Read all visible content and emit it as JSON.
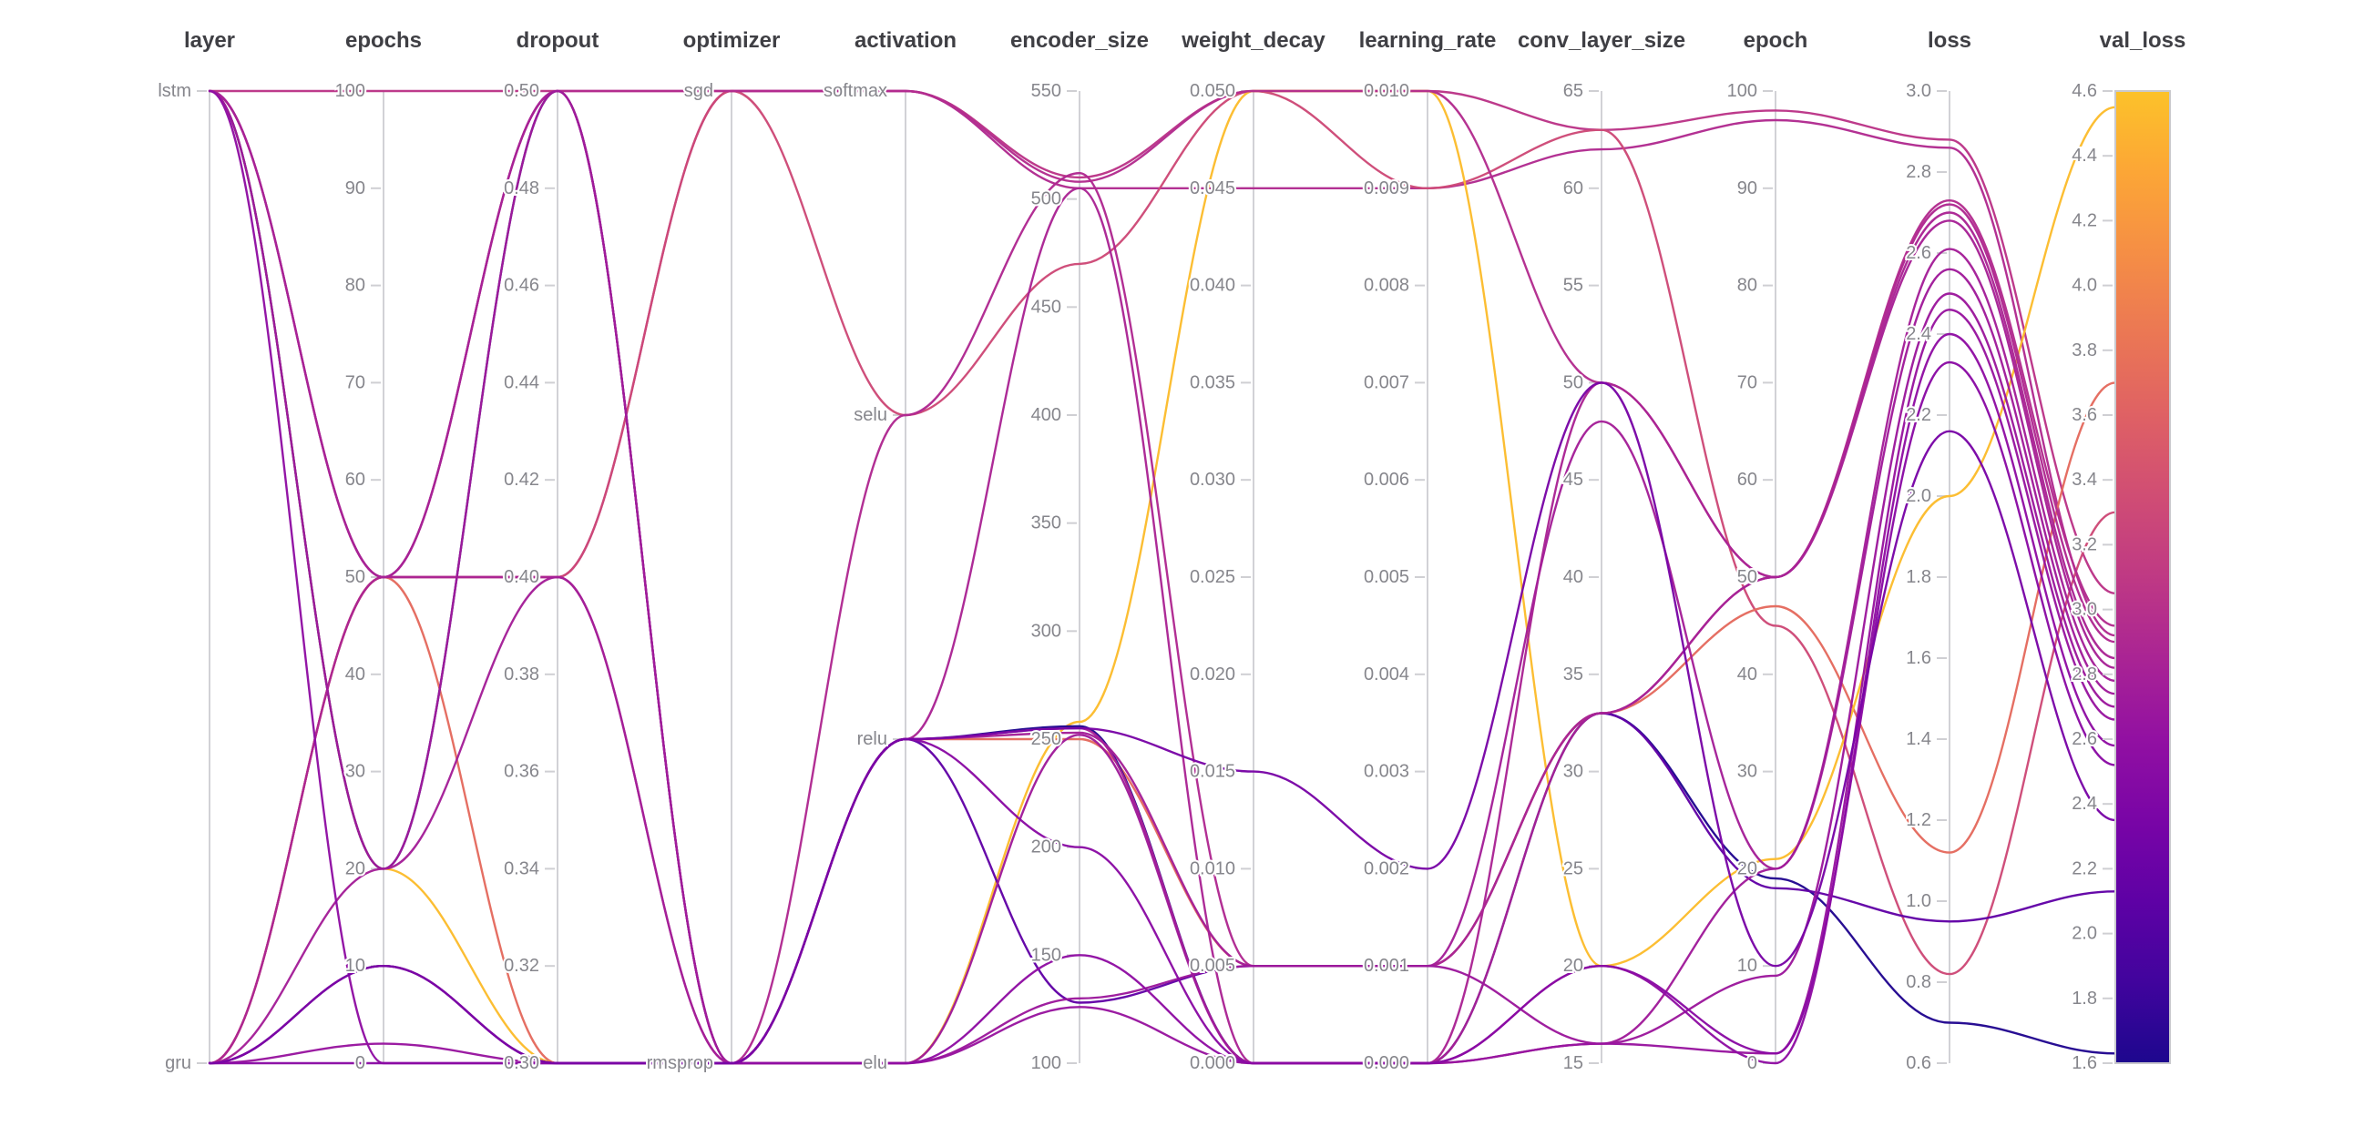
{
  "chart_data": {
    "type": "parallel_coordinates",
    "title": "",
    "legend": "none",
    "grid": "off",
    "color_by": "val_loss",
    "colormap": "plasma",
    "plasma_stops": [
      "#0d0887",
      "#41049d",
      "#6a00a8",
      "#8f0da4",
      "#b12a90",
      "#cc4778",
      "#e16462",
      "#f2844b",
      "#fca636",
      "#fcce25",
      "#f0f921"
    ],
    "color_domain_fraction": [
      0.03,
      0.87
    ],
    "axes": [
      {
        "id": "layer",
        "label": "layer",
        "type": "category",
        "categories_top_to_bottom": [
          "lstm",
          "gru"
        ]
      },
      {
        "id": "epochs",
        "label": "epochs",
        "type": "number",
        "min": 0,
        "max": 100,
        "tick_step": 10,
        "tick_labels": [
          "0",
          "10",
          "20",
          "30",
          "40",
          "50",
          "60",
          "70",
          "80",
          "90",
          "100"
        ]
      },
      {
        "id": "dropout",
        "label": "dropout",
        "type": "number",
        "min": 0.3,
        "max": 0.5,
        "tick_step": 0.02,
        "tick_labels": [
          "0.30",
          "0.32",
          "0.34",
          "0.36",
          "0.38",
          "0.40",
          "0.42",
          "0.44",
          "0.46",
          "0.48",
          "0.50"
        ]
      },
      {
        "id": "optimizer",
        "label": "optimizer",
        "type": "category",
        "categories_top_to_bottom": [
          "sgd",
          "rmsprop"
        ]
      },
      {
        "id": "activation",
        "label": "activation",
        "type": "category",
        "categories_top_to_bottom": [
          "softmax",
          "selu",
          "relu",
          "elu"
        ]
      },
      {
        "id": "encoder_size",
        "label": "encoder_size",
        "type": "number",
        "min": 100,
        "max": 550,
        "tick_step": 50,
        "tick_labels": [
          "100",
          "150",
          "200",
          "250",
          "300",
          "350",
          "400",
          "450",
          "500",
          "550"
        ]
      },
      {
        "id": "weight_decay",
        "label": "weight_decay",
        "type": "number",
        "min": 0.0,
        "max": 0.05,
        "tick_step": 0.005,
        "tick_labels": [
          "0.000",
          "0.005",
          "0.010",
          "0.015",
          "0.020",
          "0.025",
          "0.030",
          "0.035",
          "0.040",
          "0.045",
          "0.050"
        ]
      },
      {
        "id": "learning_rate",
        "label": "learning_rate",
        "type": "number",
        "min": 0.0,
        "max": 0.01,
        "tick_step": 0.001,
        "tick_labels": [
          "0.000",
          "0.001",
          "0.002",
          "0.003",
          "0.004",
          "0.005",
          "0.006",
          "0.007",
          "0.008",
          "0.009",
          "0.010"
        ]
      },
      {
        "id": "conv_layer_size",
        "label": "conv_layer_size",
        "type": "number",
        "min": 15,
        "max": 65,
        "tick_step": 5,
        "tick_labels": [
          "15",
          "20",
          "25",
          "30",
          "35",
          "40",
          "45",
          "50",
          "55",
          "60",
          "65"
        ]
      },
      {
        "id": "epoch",
        "label": "epoch",
        "type": "number",
        "min": 0,
        "max": 100,
        "tick_step": 10,
        "tick_labels": [
          "0",
          "10",
          "20",
          "30",
          "40",
          "50",
          "60",
          "70",
          "80",
          "90",
          "100"
        ]
      },
      {
        "id": "loss",
        "label": "loss",
        "type": "number",
        "min": 0.6,
        "max": 3.0,
        "tick_step": 0.2,
        "tick_labels": [
          "0.6",
          "0.8",
          "1.0",
          "1.2",
          "1.4",
          "1.6",
          "1.8",
          "2.0",
          "2.2",
          "2.4",
          "2.6",
          "2.8",
          "3.0"
        ]
      }
    ],
    "colorbar": {
      "id": "val_loss",
      "label": "val_loss",
      "min": 1.6,
      "max": 4.6,
      "tick_step": 0.2,
      "tick_labels": [
        "1.6",
        "1.8",
        "2.0",
        "2.2",
        "2.4",
        "2.6",
        "2.8",
        "3.0",
        "3.2",
        "3.4",
        "3.6",
        "3.8",
        "4.0",
        "4.2",
        "4.4",
        "4.6"
      ]
    },
    "runs": [
      {
        "layer": "lstm",
        "epochs": 100,
        "dropout": 0.5,
        "optimizer": "sgd",
        "activation": "softmax",
        "encoder_size": 510,
        "weight_decay": 0.05,
        "learning_rate": 0.01,
        "conv_layer_size": 63,
        "epoch": 98,
        "loss": 2.88,
        "val_loss": 3.05
      },
      {
        "layer": "gru",
        "epochs": 50,
        "dropout": 0.4,
        "optimizer": "sgd",
        "activation": "softmax",
        "encoder_size": 505,
        "weight_decay": 0.045,
        "learning_rate": 0.009,
        "conv_layer_size": 62,
        "epoch": 97,
        "loss": 2.86,
        "val_loss": 2.92
      },
      {
        "layer": "gru",
        "epochs": 50,
        "dropout": 0.4,
        "optimizer": "sgd",
        "activation": "selu",
        "encoder_size": 470,
        "weight_decay": 0.05,
        "learning_rate": 0.009,
        "conv_layer_size": 63,
        "epoch": 45,
        "loss": 0.82,
        "val_loss": 3.3
      },
      {
        "layer": "gru",
        "epochs": 50,
        "dropout": 0.3,
        "optimizer": "rmsprop",
        "activation": "relu",
        "encoder_size": 250,
        "weight_decay": 0.005,
        "learning_rate": 0.001,
        "conv_layer_size": 33,
        "epoch": 47,
        "loss": 1.12,
        "val_loss": 3.7
      },
      {
        "layer": "lstm",
        "epochs": 20,
        "dropout": 0.3,
        "optimizer": "rmsprop",
        "activation": "elu",
        "encoder_size": 258,
        "weight_decay": 0.05,
        "learning_rate": 0.01,
        "conv_layer_size": 20,
        "epoch": 21,
        "loss": 2.0,
        "val_loss": 4.55
      },
      {
        "layer": "lstm",
        "epochs": 20,
        "dropout": 0.5,
        "optimizer": "rmsprop",
        "activation": "relu",
        "encoder_size": 256,
        "weight_decay": 0.0,
        "learning_rate": 0.0,
        "conv_layer_size": 33,
        "epoch": 19,
        "loss": 0.7,
        "val_loss": 1.63
      },
      {
        "layer": "gru",
        "epochs": 10,
        "dropout": 0.3,
        "optimizer": "rmsprop",
        "activation": "relu",
        "encoder_size": 128,
        "weight_decay": 0.005,
        "learning_rate": 0.001,
        "conv_layer_size": 33,
        "epoch": 18,
        "loss": 0.95,
        "val_loss": 2.13
      },
      {
        "layer": "lstm",
        "epochs": 50,
        "dropout": 0.5,
        "optimizer": "sgd",
        "activation": "softmax",
        "encoder_size": 508,
        "weight_decay": 0.05,
        "learning_rate": 0.01,
        "conv_layer_size": 50,
        "epoch": 50,
        "loss": 2.73,
        "val_loss": 2.95
      },
      {
        "layer": "lstm",
        "epochs": 50,
        "dropout": 0.5,
        "optimizer": "rmsprop",
        "activation": "selu",
        "encoder_size": 512,
        "weight_decay": 0.005,
        "learning_rate": 0.001,
        "conv_layer_size": 33,
        "epoch": 50,
        "loss": 2.72,
        "val_loss": 2.9
      },
      {
        "layer": "gru",
        "epochs": 50,
        "dropout": 0.4,
        "optimizer": "rmsprop",
        "activation": "relu",
        "encoder_size": 505,
        "weight_decay": 0.0,
        "learning_rate": 0.0,
        "conv_layer_size": 50,
        "epoch": 50,
        "loss": 2.7,
        "val_loss": 2.85
      },
      {
        "layer": "lstm",
        "epochs": 50,
        "dropout": 0.5,
        "optimizer": "rmsprop",
        "activation": "relu",
        "encoder_size": 255,
        "weight_decay": 0.0,
        "learning_rate": 0.0,
        "conv_layer_size": 33,
        "epoch": 50,
        "loss": 2.68,
        "val_loss": 2.82
      },
      {
        "layer": "gru",
        "epochs": 20,
        "dropout": 0.4,
        "optimizer": "rmsprop",
        "activation": "relu",
        "encoder_size": 253,
        "weight_decay": 0.005,
        "learning_rate": 0.001,
        "conv_layer_size": 48,
        "epoch": 20,
        "loss": 2.61,
        "val_loss": 2.78
      },
      {
        "layer": "lstm",
        "epochs": 20,
        "dropout": 0.5,
        "optimizer": "rmsprop",
        "activation": "elu",
        "encoder_size": 252,
        "weight_decay": 0.0,
        "learning_rate": 0.0,
        "conv_layer_size": 16,
        "epoch": 20,
        "loss": 2.56,
        "val_loss": 2.74
      },
      {
        "layer": "gru",
        "epochs": 10,
        "dropout": 0.3,
        "optimizer": "rmsprop",
        "activation": "elu",
        "encoder_size": 130,
        "weight_decay": 0.005,
        "learning_rate": 0.001,
        "conv_layer_size": 16,
        "epoch": 9,
        "loss": 2.5,
        "val_loss": 2.7
      },
      {
        "layer": "gru",
        "epochs": 2,
        "dropout": 0.3,
        "optimizer": "rmsprop",
        "activation": "elu",
        "encoder_size": 126,
        "weight_decay": 0.0,
        "learning_rate": 0.0,
        "conv_layer_size": 16,
        "epoch": 1,
        "loss": 2.46,
        "val_loss": 2.66
      },
      {
        "layer": "lstm",
        "epochs": 0,
        "dropout": 0.3,
        "optimizer": "rmsprop",
        "activation": "elu",
        "encoder_size": 150,
        "weight_decay": 0.0,
        "learning_rate": 0.0,
        "conv_layer_size": 20,
        "epoch": 0,
        "loss": 2.4,
        "val_loss": 2.58
      },
      {
        "layer": "gru",
        "epochs": 0,
        "dropout": 0.3,
        "optimizer": "rmsprop",
        "activation": "relu",
        "encoder_size": 200,
        "weight_decay": 0.0,
        "learning_rate": 0.0,
        "conv_layer_size": 20,
        "epoch": 1,
        "loss": 2.33,
        "val_loss": 2.52
      },
      {
        "layer": "gru",
        "epochs": 10,
        "dropout": 0.3,
        "optimizer": "rmsprop",
        "activation": "relu",
        "encoder_size": 255,
        "weight_decay": 0.015,
        "learning_rate": 0.002,
        "conv_layer_size": 50,
        "epoch": 10,
        "loss": 2.16,
        "val_loss": 2.35
      }
    ]
  },
  "style": {
    "background": "#ffffff",
    "axis_line_color": "#d2d2d6",
    "tick_label_color": "#86868c",
    "axis_title_color": "#3f3f44"
  }
}
